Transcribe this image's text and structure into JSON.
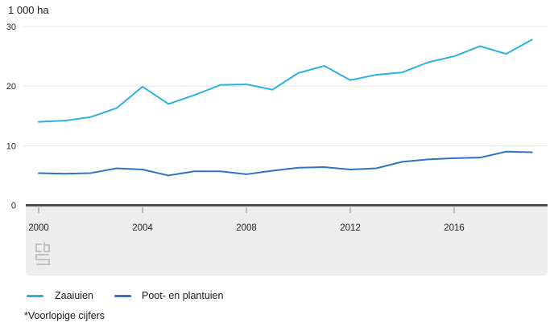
{
  "title": "1 000 ha",
  "footnote": "*Voorlopige cijfers",
  "legend": {
    "zaaiuien_label": "Zaaiuien",
    "poot_label": "Poot- en plantuien"
  },
  "colors": {
    "zaaiuien": "#2bb1e2",
    "poot": "#2f73c5",
    "gridline": "#e4e4e4",
    "axis_zero_line": "#4e4e4e",
    "axis_band": "#ededed",
    "tick": "#aaaaaa",
    "tick_text": "#262626",
    "logo": "#c2c2c2"
  },
  "chart_data": {
    "type": "line",
    "title": "1 000 ha",
    "xlabel": "",
    "ylabel": "1 000 ha",
    "ylim": [
      0,
      30
    ],
    "y_ticks": [
      0,
      10,
      20,
      30
    ],
    "x_ticks": [
      2000,
      2004,
      2008,
      2012,
      2016
    ],
    "grid": "horizontal",
    "legend_position": "bottom",
    "footnote": "*Voorlopige cijfers",
    "x": [
      2000,
      2001,
      2002,
      2003,
      2004,
      2005,
      2006,
      2007,
      2008,
      2009,
      2010,
      2011,
      2012,
      2013,
      2014,
      2015,
      2016,
      2017,
      2018,
      2019
    ],
    "series": [
      {
        "name": "Zaaiuien",
        "color": "#2bb1e2",
        "values": [
          14.0,
          14.2,
          14.8,
          16.3,
          19.9,
          17.0,
          18.5,
          20.2,
          20.3,
          19.4,
          22.2,
          23.4,
          21.0,
          21.9,
          22.3,
          24.0,
          25.0,
          26.7,
          25.4,
          27.8
        ]
      },
      {
        "name": "Poot- en plantuien",
        "color": "#2f73c5",
        "values": [
          5.4,
          5.3,
          5.4,
          6.2,
          6.0,
          5.0,
          5.7,
          5.7,
          5.2,
          5.8,
          6.3,
          6.4,
          6.0,
          6.2,
          7.3,
          7.7,
          7.9,
          8.0,
          9.0,
          8.9
        ]
      }
    ]
  }
}
